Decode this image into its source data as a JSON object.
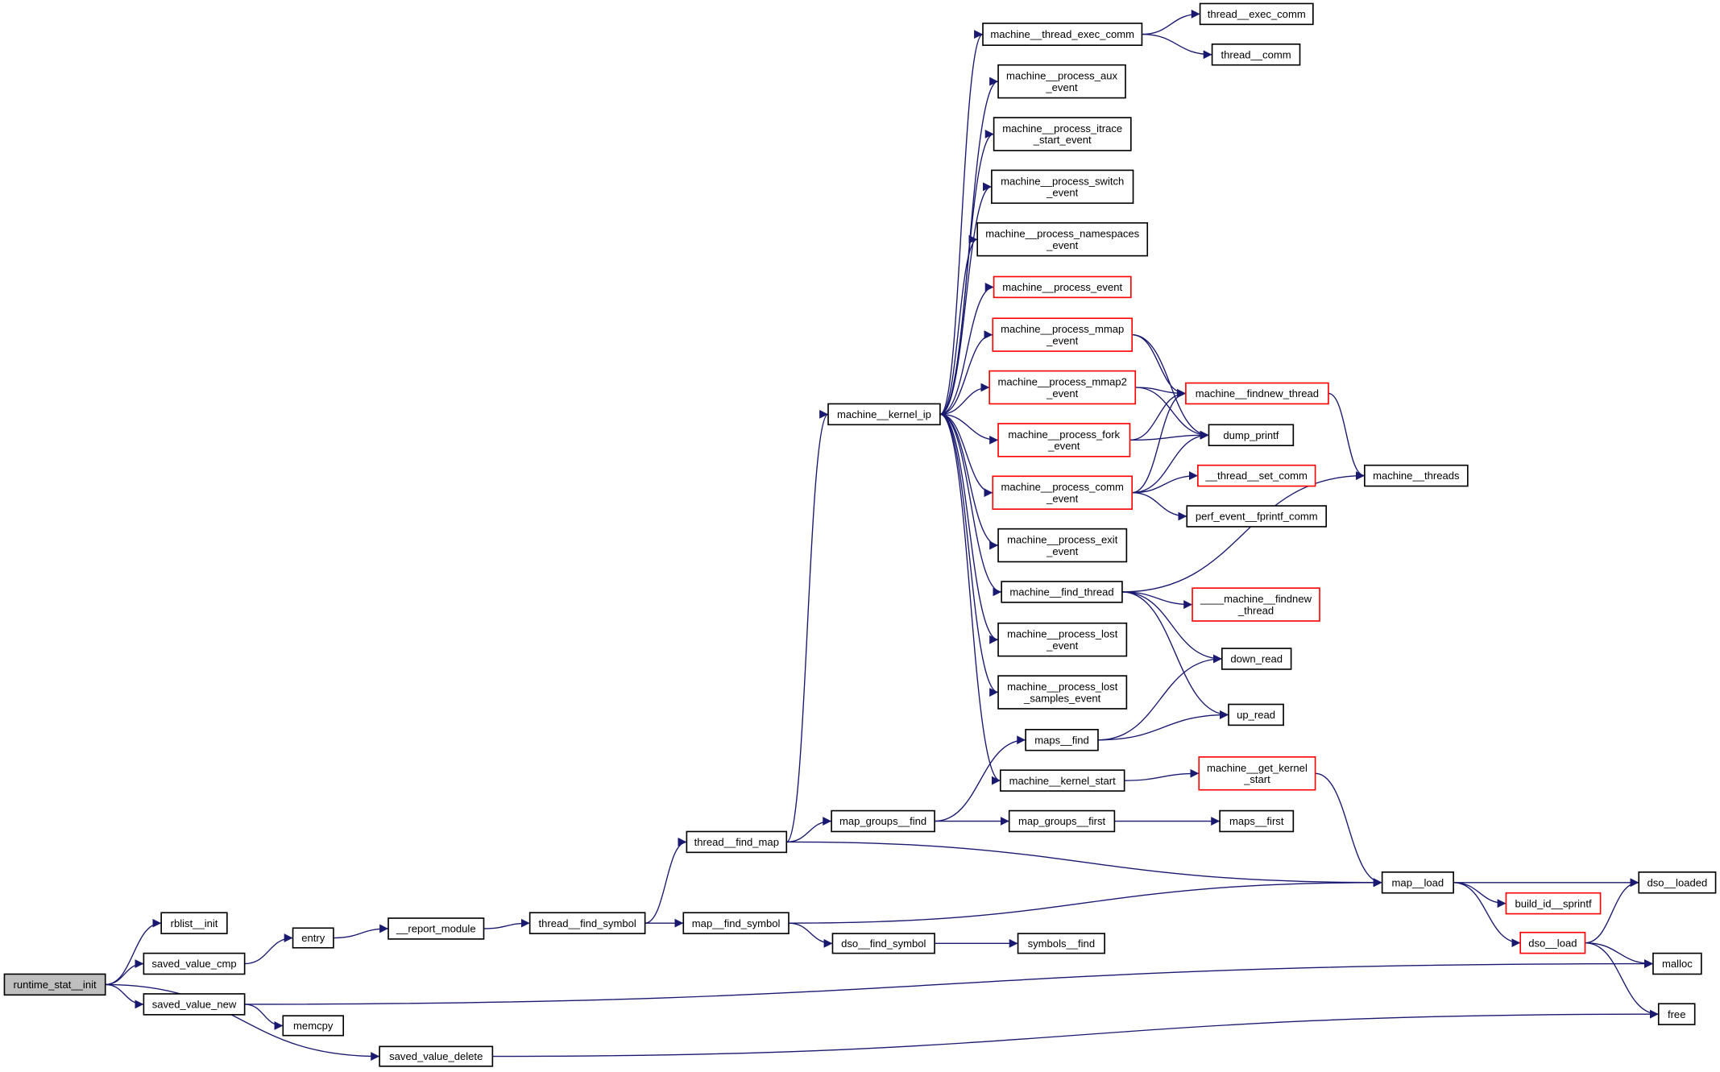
{
  "colors": {
    "edge": "#191970",
    "node_border": "#000000",
    "highlight_border": "#ff0000",
    "root_fill": "#bfbfbf",
    "node_fill": "#ffffff"
  },
  "nodes": [
    {
      "id": "runtime_stat__init",
      "lines": [
        "runtime_stat__init"
      ],
      "root": true
    },
    {
      "id": "rblist__init",
      "lines": [
        "rblist__init"
      ]
    },
    {
      "id": "saved_value_cmp",
      "lines": [
        "saved_value_cmp"
      ]
    },
    {
      "id": "saved_value_new",
      "lines": [
        "saved_value_new"
      ]
    },
    {
      "id": "memcpy",
      "lines": [
        "memcpy"
      ]
    },
    {
      "id": "saved_value_delete",
      "lines": [
        "saved_value_delete"
      ]
    },
    {
      "id": "entry",
      "lines": [
        "entry"
      ]
    },
    {
      "id": "__report_module",
      "lines": [
        "__report_module"
      ]
    },
    {
      "id": "thread__find_symbol",
      "lines": [
        "thread__find_symbol"
      ]
    },
    {
      "id": "map__find_symbol",
      "lines": [
        "map__find_symbol"
      ]
    },
    {
      "id": "dso__find_symbol",
      "lines": [
        "dso__find_symbol"
      ]
    },
    {
      "id": "symbols__find",
      "lines": [
        "symbols__find"
      ]
    },
    {
      "id": "thread__find_map",
      "lines": [
        "thread__find_map"
      ]
    },
    {
      "id": "map_groups__find",
      "lines": [
        "map_groups__find"
      ]
    },
    {
      "id": "map_groups__first",
      "lines": [
        "map_groups__first"
      ]
    },
    {
      "id": "maps__first",
      "lines": [
        "maps__first"
      ]
    },
    {
      "id": "maps__find",
      "lines": [
        "maps__find"
      ]
    },
    {
      "id": "machine__kernel_start",
      "lines": [
        "machine__kernel_start"
      ]
    },
    {
      "id": "machine__get_kernel_start",
      "lines": [
        "machine__get_kernel",
        "_start"
      ],
      "red": true
    },
    {
      "id": "map__load",
      "lines": [
        "map__load"
      ]
    },
    {
      "id": "dso__loaded",
      "lines": [
        "dso__loaded"
      ]
    },
    {
      "id": "build_id__sprintf",
      "lines": [
        "build_id__sprintf"
      ],
      "red": true
    },
    {
      "id": "dso__load",
      "lines": [
        "dso__load"
      ],
      "red": true
    },
    {
      "id": "malloc",
      "lines": [
        "malloc"
      ]
    },
    {
      "id": "free",
      "lines": [
        "free"
      ]
    },
    {
      "id": "machine__kernel_ip",
      "lines": [
        "machine__kernel_ip"
      ]
    },
    {
      "id": "machine__thread_exec_comm",
      "lines": [
        "machine__thread_exec_comm"
      ]
    },
    {
      "id": "thread__exec_comm",
      "lines": [
        "thread__exec_comm"
      ]
    },
    {
      "id": "thread__comm",
      "lines": [
        "thread__comm"
      ]
    },
    {
      "id": "machine__process_aux_event",
      "lines": [
        "machine__process_aux",
        "_event"
      ]
    },
    {
      "id": "machine__process_itrace_start_event",
      "lines": [
        "machine__process_itrace",
        "_start_event"
      ]
    },
    {
      "id": "machine__process_switch_event",
      "lines": [
        "machine__process_switch",
        "_event"
      ]
    },
    {
      "id": "machine__process_namespaces_event",
      "lines": [
        "machine__process_namespaces",
        "_event"
      ]
    },
    {
      "id": "machine__process_event",
      "lines": [
        "machine__process_event"
      ],
      "red": true
    },
    {
      "id": "machine__process_mmap_event",
      "lines": [
        "machine__process_mmap",
        "_event"
      ],
      "red": true
    },
    {
      "id": "machine__process_mmap2_event",
      "lines": [
        "machine__process_mmap2",
        "_event"
      ],
      "red": true
    },
    {
      "id": "machine__process_fork_event",
      "lines": [
        "machine__process_fork",
        "_event"
      ],
      "red": true
    },
    {
      "id": "machine__process_comm_event",
      "lines": [
        "machine__process_comm",
        "_event"
      ],
      "red": true
    },
    {
      "id": "machine__process_exit_event",
      "lines": [
        "machine__process_exit",
        "_event"
      ]
    },
    {
      "id": "machine__find_thread",
      "lines": [
        "machine__find_thread"
      ]
    },
    {
      "id": "machine__process_lost_event",
      "lines": [
        "machine__process_lost",
        "_event"
      ]
    },
    {
      "id": "machine__process_lost_samples_event",
      "lines": [
        "machine__process_lost",
        "_samples_event"
      ]
    },
    {
      "id": "machine__findnew_thread",
      "lines": [
        "machine__findnew_thread"
      ],
      "red": true
    },
    {
      "id": "dump_printf",
      "lines": [
        "dump_printf"
      ]
    },
    {
      "id": "__thread__set_comm",
      "lines": [
        "__thread__set_comm"
      ],
      "red": true
    },
    {
      "id": "perf_event__fprintf_comm",
      "lines": [
        "perf_event__fprintf_comm"
      ]
    },
    {
      "id": "machine__threads",
      "lines": [
        "machine__threads"
      ]
    },
    {
      "id": "____machine__findnew_thread",
      "lines": [
        "____machine__findnew",
        "_thread"
      ],
      "red": true
    },
    {
      "id": "down_read",
      "lines": [
        "down_read"
      ]
    },
    {
      "id": "up_read",
      "lines": [
        "up_read"
      ]
    }
  ],
  "edges": [
    [
      "runtime_stat__init",
      "rblist__init"
    ],
    [
      "runtime_stat__init",
      "saved_value_cmp"
    ],
    [
      "runtime_stat__init",
      "saved_value_new"
    ],
    [
      "runtime_stat__init",
      "saved_value_delete"
    ],
    [
      "saved_value_cmp",
      "entry"
    ],
    [
      "entry",
      "__report_module"
    ],
    [
      "__report_module",
      "thread__find_symbol"
    ],
    [
      "thread__find_symbol",
      "thread__find_map"
    ],
    [
      "thread__find_symbol",
      "map__find_symbol"
    ],
    [
      "thread__find_map",
      "machine__kernel_ip"
    ],
    [
      "thread__find_map",
      "map_groups__find"
    ],
    [
      "thread__find_map",
      "map__load"
    ],
    [
      "map_groups__find",
      "maps__find"
    ],
    [
      "map_groups__find",
      "map_groups__first"
    ],
    [
      "map_groups__first",
      "maps__first"
    ],
    [
      "maps__find",
      "down_read"
    ],
    [
      "maps__find",
      "up_read"
    ],
    [
      "map__find_symbol",
      "map__load"
    ],
    [
      "map__find_symbol",
      "dso__find_symbol"
    ],
    [
      "dso__find_symbol",
      "symbols__find"
    ],
    [
      "map__load",
      "dso__loaded"
    ],
    [
      "map__load",
      "build_id__sprintf"
    ],
    [
      "map__load",
      "dso__load"
    ],
    [
      "dso__load",
      "dso__loaded"
    ],
    [
      "dso__load",
      "malloc"
    ],
    [
      "dso__load",
      "free"
    ],
    [
      "saved_value_new",
      "malloc"
    ],
    [
      "saved_value_new",
      "memcpy"
    ],
    [
      "saved_value_delete",
      "free"
    ],
    [
      "machine__get_kernel_start",
      "map__load"
    ],
    [
      "machine__kernel_start",
      "machine__get_kernel_start"
    ],
    [
      "machine__kernel_ip",
      "machine__thread_exec_comm"
    ],
    [
      "machine__kernel_ip",
      "machine__process_aux_event"
    ],
    [
      "machine__kernel_ip",
      "machine__process_itrace_start_event"
    ],
    [
      "machine__kernel_ip",
      "machine__process_switch_event"
    ],
    [
      "machine__kernel_ip",
      "machine__process_namespaces_event"
    ],
    [
      "machine__kernel_ip",
      "machine__process_event"
    ],
    [
      "machine__kernel_ip",
      "machine__process_mmap_event"
    ],
    [
      "machine__kernel_ip",
      "machine__process_mmap2_event"
    ],
    [
      "machine__kernel_ip",
      "machine__process_fork_event"
    ],
    [
      "machine__kernel_ip",
      "machine__process_comm_event"
    ],
    [
      "machine__kernel_ip",
      "machine__process_exit_event"
    ],
    [
      "machine__kernel_ip",
      "machine__find_thread"
    ],
    [
      "machine__kernel_ip",
      "machine__process_lost_event"
    ],
    [
      "machine__kernel_ip",
      "machine__process_lost_samples_event"
    ],
    [
      "machine__kernel_ip",
      "machine__kernel_start"
    ],
    [
      "machine__thread_exec_comm",
      "thread__exec_comm"
    ],
    [
      "machine__thread_exec_comm",
      "thread__comm"
    ],
    [
      "machine__process_mmap_event",
      "machine__findnew_thread"
    ],
    [
      "machine__process_mmap_event",
      "dump_printf"
    ],
    [
      "machine__process_mmap2_event",
      "machine__findnew_thread"
    ],
    [
      "machine__process_mmap2_event",
      "dump_printf"
    ],
    [
      "machine__process_fork_event",
      "machine__findnew_thread"
    ],
    [
      "machine__process_fork_event",
      "dump_printf"
    ],
    [
      "machine__process_comm_event",
      "machine__findnew_thread"
    ],
    [
      "machine__process_comm_event",
      "dump_printf"
    ],
    [
      "machine__process_comm_event",
      "__thread__set_comm"
    ],
    [
      "machine__process_comm_event",
      "perf_event__fprintf_comm"
    ],
    [
      "machine__findnew_thread",
      "machine__threads"
    ],
    [
      "machine__find_thread",
      "machine__threads"
    ],
    [
      "machine__find_thread",
      "____machine__findnew_thread"
    ],
    [
      "machine__find_thread",
      "down_read"
    ],
    [
      "machine__find_thread",
      "up_read"
    ]
  ]
}
